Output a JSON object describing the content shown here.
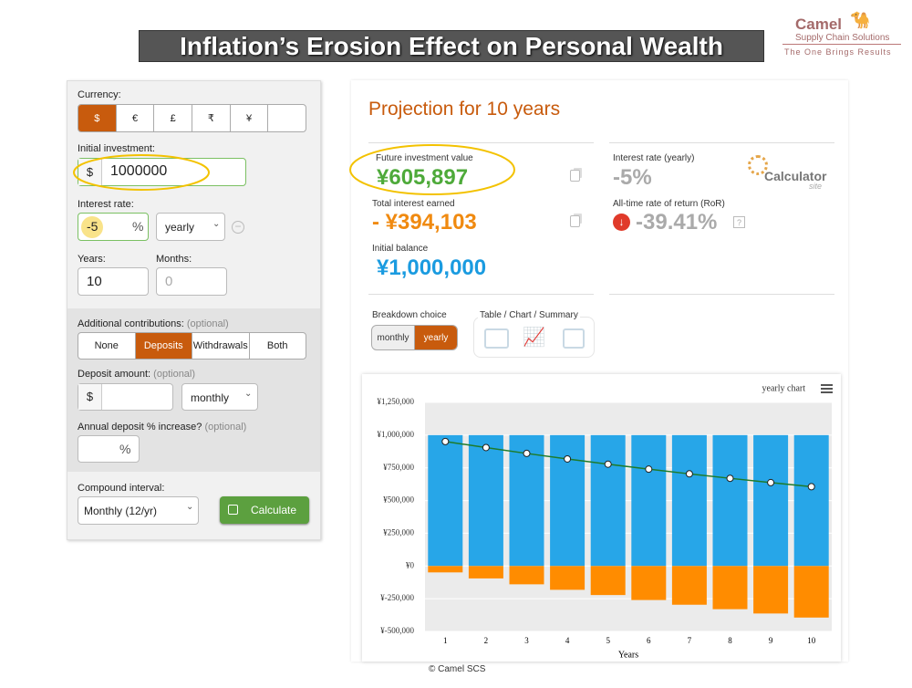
{
  "header": {
    "title": "Inflation’s Erosion Effect on Personal Wealth",
    "logo": {
      "name": "Camel",
      "tagline": "Supply Chain Solutions",
      "slogan": "The One Brings Results"
    }
  },
  "form": {
    "currency": {
      "label": "Currency:",
      "options": [
        "$",
        "€",
        "£",
        "₹",
        "¥"
      ]
    },
    "initial_investment": {
      "label": "Initial investment:",
      "prefix": "$",
      "value": "1000000"
    },
    "interest_rate": {
      "label": "Interest rate:",
      "value": "-5",
      "suffix": "%",
      "period": "yearly"
    },
    "years": {
      "label": "Years:",
      "value": "10"
    },
    "months": {
      "label": "Months:",
      "value": "0"
    },
    "contributions": {
      "label": "Additional contributions:",
      "note": "(optional)",
      "options": [
        "None",
        "Deposits",
        "Withdrawals",
        "Both"
      ]
    },
    "deposit_amount": {
      "label": "Deposit amount:",
      "note": "(optional)",
      "prefix": "$",
      "frequency": "monthly"
    },
    "deposit_increase": {
      "label": "Annual deposit % increase?",
      "note": "(optional)",
      "suffix": "%"
    },
    "compound": {
      "label": "Compound interval:",
      "value": "Monthly (12/yr)"
    },
    "calculate": "Calculate"
  },
  "results": {
    "title": "Projection for 10 years",
    "future_value": {
      "label": "Future investment value",
      "value": "¥605,897"
    },
    "interest_earned": {
      "label": "Total interest earned",
      "value": "- ¥394,103"
    },
    "initial_balance": {
      "label": "Initial balance",
      "value": "¥1,000,000"
    },
    "interest_rate": {
      "label": "Interest rate (yearly)",
      "value": "-5%"
    },
    "ror": {
      "label": "All-time rate of return (RoR)",
      "value": "-39.41%"
    },
    "brand": {
      "name": "Calculator",
      "suffix": "site"
    },
    "breakdown": {
      "label": "Breakdown choice",
      "options": [
        "monthly",
        "yearly"
      ]
    },
    "views": "Table / Chart / Summary"
  },
  "chart_data": {
    "type": "bar",
    "title": "yearly chart",
    "x_label": "Years",
    "categories": [
      1,
      2,
      3,
      4,
      5,
      6,
      7,
      8,
      9,
      10
    ],
    "series": [
      {
        "color": "#27a6e8",
        "values": [
          1000000,
          1000000,
          1000000,
          1000000,
          1000000,
          1000000,
          1000000,
          1000000,
          1000000,
          1000000
        ]
      },
      {
        "color": "#ff8c00",
        "values": [
          -49000,
          -95000,
          -140000,
          -182000,
          -222000,
          -260000,
          -296000,
          -330000,
          -363000,
          -394000
        ]
      },
      {
        "type": "line",
        "color": "#1e7b2a",
        "values": [
          951000,
          905000,
          860000,
          818000,
          778000,
          740000,
          704000,
          670000,
          637000,
          606000
        ]
      }
    ],
    "ylim": [
      -500000,
      1250000
    ],
    "yticks": [
      {
        "value": -500000,
        "label": "¥-500,000"
      },
      {
        "value": -250000,
        "label": "¥-250,000"
      },
      {
        "value": 0,
        "label": "¥0"
      },
      {
        "value": 250000,
        "label": "¥250,000"
      },
      {
        "value": 500000,
        "label": "¥500,000"
      },
      {
        "value": 750000,
        "label": "¥750,000"
      },
      {
        "value": 1000000,
        "label": "¥1,000,000"
      },
      {
        "value": 1250000,
        "label": "¥1,250,000"
      }
    ],
    "grid": true
  },
  "footer": "© Camel SCS"
}
